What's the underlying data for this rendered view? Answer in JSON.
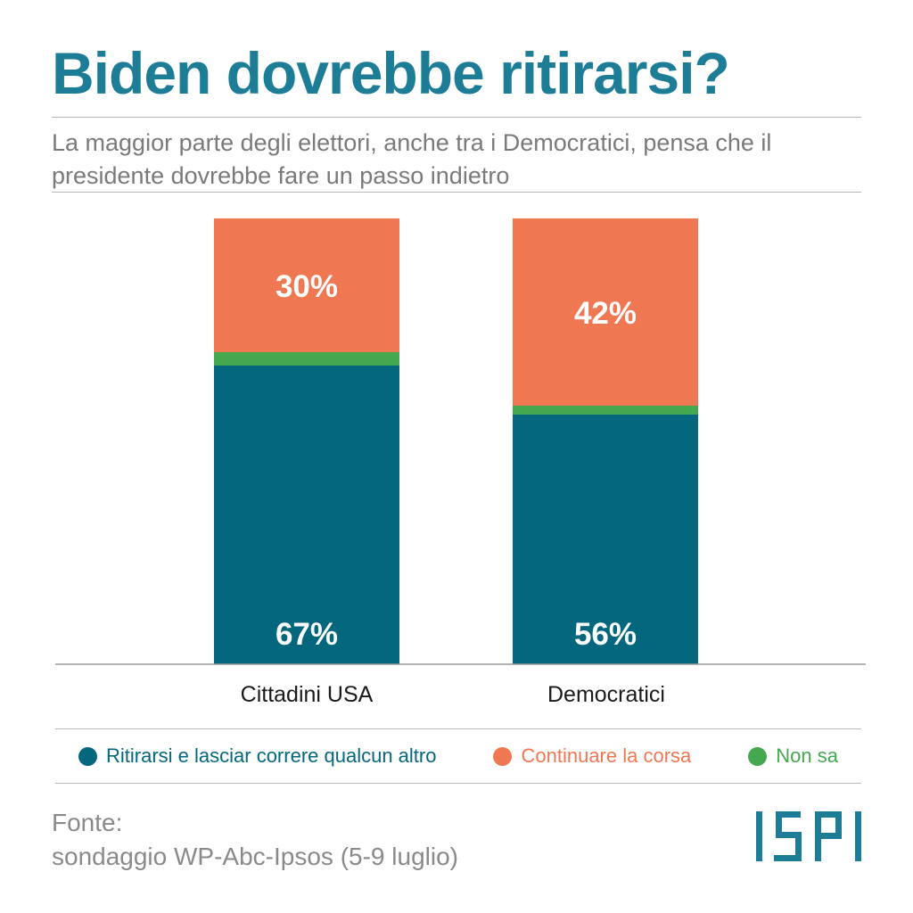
{
  "title": "Biden dovrebbe ritirarsi?",
  "subtitle": "La maggior parte degli elettori, anche tra i Democratici, pensa che il presidente dovrebbe fare un passo indietro",
  "colors": {
    "title": "#1e7d96",
    "ritirarsi": "#04677d",
    "continuare": "#ef7752",
    "non_sa": "#45a84f",
    "logo": "#1e7d96"
  },
  "legend": [
    {
      "label": "Ritirarsi e lasciar correre qualcun altro",
      "color": "#04677d"
    },
    {
      "label": "Continuare la corsa",
      "color": "#ef7752"
    },
    {
      "label": "Non sa",
      "color": "#45a84f"
    }
  ],
  "source": {
    "label": "Fonte:",
    "text": "sondaggio WP-Abc-Ipsos (5-9 luglio)"
  },
  "logo_text": "ISPI",
  "chart_data": {
    "type": "bar",
    "stacked": true,
    "categories": [
      "Cittadini USA",
      "Democratici"
    ],
    "series": [
      {
        "name": "Ritirarsi e lasciar correre qualcun altro",
        "values": [
          67,
          56
        ],
        "labels": [
          "67%",
          "56%"
        ]
      },
      {
        "name": "Non sa",
        "values": [
          3,
          2
        ],
        "labels": [
          "",
          ""
        ]
      },
      {
        "name": "Continuare la corsa",
        "values": [
          30,
          42
        ],
        "labels": [
          "30%",
          "42%"
        ]
      }
    ],
    "ylim": [
      0,
      100
    ],
    "grid": false,
    "legend_position": "bottom"
  }
}
